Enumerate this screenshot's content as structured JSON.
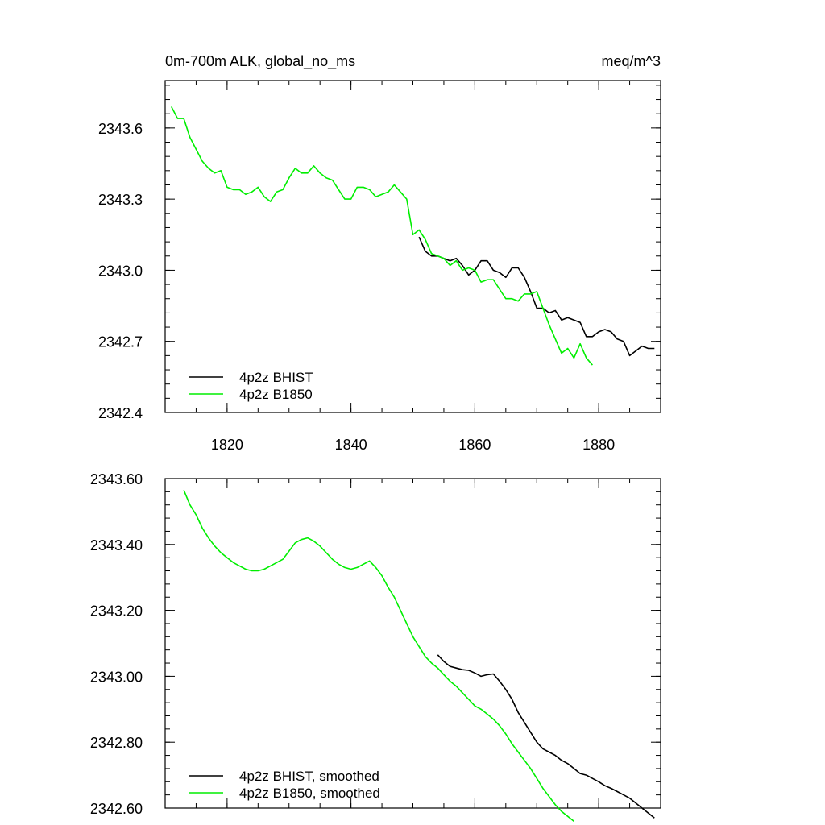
{
  "header": {
    "left": "0m-700m ALK, global_no_ms",
    "right": "meq/m^3"
  },
  "chart_data": [
    {
      "type": "line",
      "title": "0m-700m ALK, global_no_ms",
      "subtitle": "meq/m^3",
      "xlim": [
        1810,
        1890
      ],
      "ylim": [
        2342.4,
        2343.8
      ],
      "xticks": [
        1820,
        1840,
        1860,
        1880
      ],
      "xtick_labels": [
        "1820",
        "1840",
        "1860",
        "1880"
      ],
      "yticks": [
        2342.4,
        2342.7,
        2343.0,
        2343.3,
        2343.6
      ],
      "ytick_labels": [
        "2342.4",
        "2342.7",
        "2343.0",
        "2343.3",
        "2343.6"
      ],
      "grid": false,
      "legend": "bottom-left",
      "series": [
        {
          "name": "4p2z BHIST",
          "color": "#000000",
          "x": [
            1851,
            1852,
            1853,
            1854,
            1855,
            1856,
            1857,
            1858,
            1859,
            1860,
            1861,
            1862,
            1863,
            1864,
            1865,
            1866,
            1867,
            1868,
            1869,
            1870,
            1871,
            1872,
            1873,
            1874,
            1875,
            1876,
            1877,
            1878,
            1879,
            1880,
            1881,
            1882,
            1883,
            1884,
            1885,
            1886,
            1887,
            1888,
            1889
          ],
          "y": [
            2343.14,
            2343.08,
            2343.06,
            2343.06,
            2343.05,
            2343.04,
            2343.05,
            2343.02,
            2342.98,
            2343.0,
            2343.04,
            2343.04,
            2343.0,
            2342.99,
            2342.97,
            2343.01,
            2343.01,
            2342.97,
            2342.91,
            2342.84,
            2342.84,
            2342.82,
            2342.83,
            2342.79,
            2342.8,
            2342.79,
            2342.78,
            2342.72,
            2342.72,
            2342.74,
            2342.75,
            2342.74,
            2342.71,
            2342.7,
            2342.64,
            2342.66,
            2342.68,
            2342.67,
            2342.67
          ]
        },
        {
          "name": "4p2z B1850",
          "color": "#00ee00",
          "x": [
            1811,
            1812,
            1813,
            1814,
            1815,
            1816,
            1817,
            1818,
            1819,
            1820,
            1821,
            1822,
            1823,
            1824,
            1825,
            1826,
            1827,
            1828,
            1829,
            1830,
            1831,
            1832,
            1833,
            1834,
            1835,
            1836,
            1837,
            1838,
            1839,
            1840,
            1841,
            1842,
            1843,
            1844,
            1845,
            1846,
            1847,
            1848,
            1849,
            1850,
            1851,
            1852,
            1853,
            1854,
            1855,
            1856,
            1857,
            1858,
            1859,
            1860,
            1861,
            1862,
            1863,
            1864,
            1865,
            1866,
            1867,
            1868,
            1869,
            1870,
            1871,
            1872,
            1873,
            1874,
            1875,
            1876,
            1877,
            1878,
            1879
          ],
          "y": [
            2343.69,
            2343.64,
            2343.64,
            2343.56,
            2343.51,
            2343.46,
            2343.43,
            2343.41,
            2343.42,
            2343.35,
            2343.34,
            2343.34,
            2343.32,
            2343.33,
            2343.35,
            2343.31,
            2343.29,
            2343.33,
            2343.34,
            2343.39,
            2343.43,
            2343.41,
            2343.41,
            2343.44,
            2343.41,
            2343.39,
            2343.38,
            2343.34,
            2343.3,
            2343.3,
            2343.35,
            2343.35,
            2343.34,
            2343.31,
            2343.32,
            2343.33,
            2343.36,
            2343.33,
            2343.3,
            2343.15,
            2343.17,
            2343.13,
            2343.07,
            2343.06,
            2343.05,
            2343.02,
            2343.04,
            2343.0,
            2343.01,
            2343.0,
            2342.95,
            2342.96,
            2342.96,
            2342.92,
            2342.88,
            2342.88,
            2342.87,
            2342.9,
            2342.9,
            2342.91,
            2342.84,
            2342.77,
            2342.71,
            2342.65,
            2342.67,
            2342.63,
            2342.69,
            2342.63,
            2342.6
          ]
        }
      ]
    },
    {
      "type": "line",
      "xlim": [
        1810,
        1890
      ],
      "ylim": [
        2342.6,
        2343.6
      ],
      "xticks": [
        1820,
        1840,
        1860,
        1880
      ],
      "xtick_labels": [],
      "yticks": [
        2342.6,
        2342.8,
        2343.0,
        2343.2,
        2343.4,
        2343.6
      ],
      "ytick_labels": [
        "2342.60",
        "2342.80",
        "2343.00",
        "2343.20",
        "2343.40",
        "2343.60"
      ],
      "grid": false,
      "legend": "bottom-left",
      "series": [
        {
          "name": "4p2z BHIST, smoothed",
          "color": "#000000",
          "x": [
            1854,
            1855,
            1856,
            1857,
            1858,
            1859,
            1860,
            1861,
            1862,
            1863,
            1864,
            1865,
            1866,
            1867,
            1868,
            1869,
            1870,
            1871,
            1872,
            1873,
            1874,
            1875,
            1876,
            1877,
            1878,
            1879,
            1880,
            1881,
            1882,
            1883,
            1884,
            1885,
            1886,
            1887,
            1888,
            1889
          ],
          "y": [
            2343.065,
            2343.045,
            2343.03,
            2343.025,
            2343.02,
            2343.018,
            2343.01,
            2343.0,
            2343.005,
            2343.007,
            2342.985,
            2342.96,
            2342.93,
            2342.89,
            2342.86,
            2342.83,
            2342.8,
            2342.78,
            2342.77,
            2342.76,
            2342.745,
            2342.735,
            2342.72,
            2342.705,
            2342.7,
            2342.69,
            2342.68,
            2342.668,
            2342.66,
            2342.65,
            2342.64,
            2342.63,
            2342.615,
            2342.6,
            2342.585,
            2342.57
          ]
        },
        {
          "name": "4p2z B1850, smoothed",
          "color": "#00ee00",
          "x": [
            1813,
            1814,
            1815,
            1816,
            1817,
            1818,
            1819,
            1820,
            1821,
            1822,
            1823,
            1824,
            1825,
            1826,
            1827,
            1828,
            1829,
            1830,
            1831,
            1832,
            1833,
            1834,
            1835,
            1836,
            1837,
            1838,
            1839,
            1840,
            1841,
            1842,
            1843,
            1844,
            1845,
            1846,
            1847,
            1848,
            1849,
            1850,
            1851,
            1852,
            1853,
            1854,
            1855,
            1856,
            1857,
            1858,
            1859,
            1860,
            1861,
            1862,
            1863,
            1864,
            1865,
            1866,
            1867,
            1868,
            1869,
            1870,
            1871,
            1872,
            1873,
            1874,
            1875,
            1876
          ],
          "y": [
            2343.565,
            2343.52,
            2343.49,
            2343.45,
            2343.42,
            2343.395,
            2343.375,
            2343.36,
            2343.345,
            2343.335,
            2343.325,
            2343.32,
            2343.32,
            2343.325,
            2343.335,
            2343.345,
            2343.355,
            2343.38,
            2343.405,
            2343.415,
            2343.42,
            2343.41,
            2343.395,
            2343.375,
            2343.355,
            2343.34,
            2343.33,
            2343.325,
            2343.33,
            2343.34,
            2343.35,
            2343.33,
            2343.305,
            2343.27,
            2343.24,
            2343.2,
            2343.16,
            2343.12,
            2343.09,
            2343.06,
            2343.04,
            2343.025,
            2343.005,
            2342.985,
            2342.97,
            2342.95,
            2342.93,
            2342.91,
            2342.9,
            2342.885,
            2342.87,
            2342.85,
            2342.825,
            2342.795,
            2342.77,
            2342.745,
            2342.72,
            2342.69,
            2342.66,
            2342.635,
            2342.61,
            2342.59,
            2342.575,
            2342.56
          ]
        }
      ]
    }
  ]
}
